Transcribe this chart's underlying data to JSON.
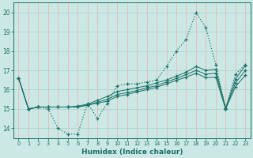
{
  "xlabel": "Humidex (Indice chaleur)",
  "background_color": "#cce8e4",
  "grid_color_h": "#aad4cf",
  "grid_color_v": "#e8b8b8",
  "line_color": "#1a7068",
  "xlim": [
    -0.5,
    23.5
  ],
  "ylim": [
    13.5,
    20.5
  ],
  "yticks": [
    14,
    15,
    16,
    17,
    18,
    19,
    20
  ],
  "xticks": [
    0,
    1,
    2,
    3,
    4,
    5,
    6,
    7,
    8,
    9,
    10,
    11,
    12,
    13,
    14,
    15,
    16,
    17,
    18,
    19,
    20,
    21,
    22,
    23
  ],
  "line1_x": [
    0,
    1,
    2,
    3,
    4,
    5,
    6,
    7,
    8,
    9,
    10,
    11,
    12,
    13,
    14,
    15,
    16,
    17,
    18,
    19,
    20,
    21,
    22,
    23
  ],
  "line1_y": [
    16.6,
    15.0,
    15.1,
    15.0,
    14.0,
    13.7,
    13.7,
    15.3,
    14.5,
    15.3,
    16.2,
    16.3,
    16.3,
    16.4,
    16.5,
    17.2,
    18.0,
    18.6,
    20.0,
    19.2,
    17.3,
    15.0,
    16.8,
    17.3
  ],
  "line2_x": [
    0,
    1,
    2,
    3,
    4,
    5,
    6,
    7,
    8,
    9,
    10,
    11,
    12,
    13,
    14,
    15,
    16,
    17,
    18,
    19,
    20,
    21,
    22,
    23
  ],
  "line2_y": [
    16.6,
    15.0,
    15.1,
    15.1,
    15.1,
    15.1,
    15.15,
    15.25,
    15.45,
    15.65,
    15.9,
    16.0,
    16.1,
    16.2,
    16.35,
    16.5,
    16.7,
    16.9,
    17.2,
    17.0,
    17.05,
    15.05,
    16.55,
    17.25
  ],
  "line3_x": [
    0,
    1,
    2,
    3,
    4,
    5,
    6,
    7,
    8,
    9,
    10,
    11,
    12,
    13,
    14,
    15,
    16,
    17,
    18,
    19,
    20,
    21,
    22,
    23
  ],
  "line3_y": [
    16.6,
    15.0,
    15.1,
    15.1,
    15.1,
    15.1,
    15.1,
    15.2,
    15.35,
    15.5,
    15.75,
    15.85,
    15.95,
    16.1,
    16.2,
    16.4,
    16.58,
    16.78,
    17.0,
    16.8,
    16.85,
    15.0,
    16.35,
    17.0
  ],
  "line4_x": [
    0,
    1,
    2,
    3,
    4,
    5,
    6,
    7,
    8,
    9,
    10,
    11,
    12,
    13,
    14,
    15,
    16,
    17,
    18,
    19,
    20,
    21,
    22,
    23
  ],
  "line4_y": [
    16.6,
    15.0,
    15.1,
    15.1,
    15.1,
    15.1,
    15.1,
    15.2,
    15.3,
    15.4,
    15.65,
    15.75,
    15.88,
    16.0,
    16.12,
    16.3,
    16.48,
    16.65,
    16.85,
    16.62,
    16.65,
    15.0,
    16.15,
    16.75
  ]
}
